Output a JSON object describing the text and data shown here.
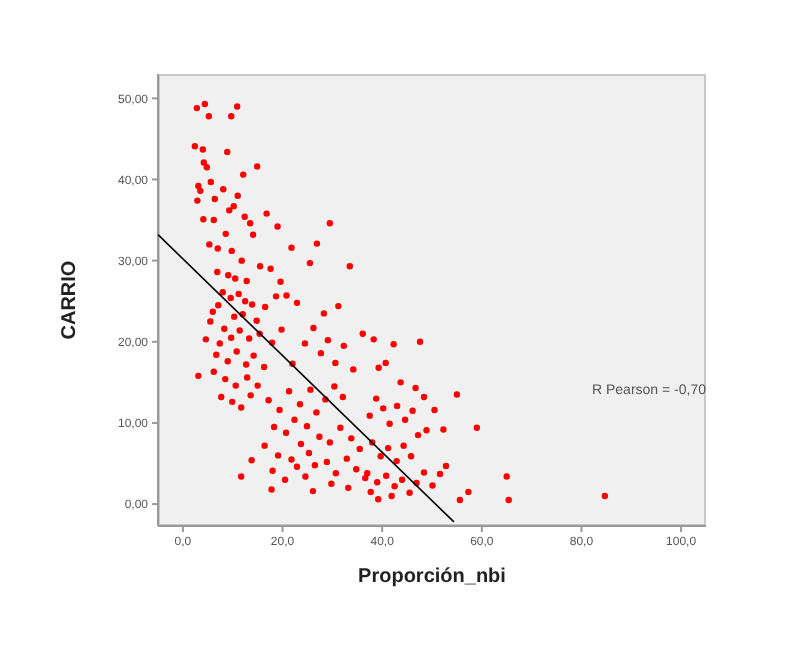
{
  "chart_data": {
    "type": "scatter",
    "xlabel": "Proporción_nbi",
    "ylabel": "CARRIO",
    "annotations": [
      "R Pearson = -0,70"
    ],
    "xlim": [
      -5,
      105
    ],
    "ylim": [
      -2.7,
      53
    ],
    "xticks": [
      {
        "value": 0,
        "label": "0,0"
      },
      {
        "value": 20,
        "label": "20,0"
      },
      {
        "value": 40,
        "label": "40,0"
      },
      {
        "value": 60,
        "label": "60,0"
      },
      {
        "value": 80,
        "label": "80,0"
      },
      {
        "value": 100,
        "label": "100,0"
      }
    ],
    "yticks": [
      {
        "value": 0,
        "label": "0,00"
      },
      {
        "value": 10,
        "label": "10,00"
      },
      {
        "value": 20,
        "label": "20,00"
      },
      {
        "value": 30,
        "label": "30,00"
      },
      {
        "value": 40,
        "label": "40,00"
      },
      {
        "value": 50,
        "label": "50,00"
      }
    ],
    "marker": "circle",
    "series": [
      {
        "color": "#ff0000",
        "x": [
          2.8,
          4.4,
          5.2,
          9.7,
          10.9,
          2.4,
          4,
          8.9,
          14.9,
          12.1,
          3.1,
          3.5,
          4.2,
          4.8,
          5.6,
          6.4,
          2.9,
          4.1,
          6.2,
          8.1,
          9.3,
          10.2,
          11,
          12.4,
          13.5,
          8.6,
          5.3,
          7,
          9.8,
          14.1,
          11.8,
          6.9,
          9.1,
          10.5,
          12.8,
          15.5,
          17.6,
          19.6,
          8,
          9.6,
          11.2,
          12.5,
          13.9,
          7.1,
          6,
          10.3,
          12,
          14.8,
          16.5,
          18.7,
          20.8,
          22.9,
          5.5,
          8.3,
          9.7,
          11.4,
          13.3,
          15.4,
          17.9,
          19.8,
          4.6,
          7.4,
          6.7,
          9,
          10.8,
          12.7,
          14.2,
          16.3,
          3.1,
          6.2,
          8.5,
          10.6,
          12.9,
          15,
          7.7,
          9.9,
          11.7,
          13.6,
          17.2,
          19.4,
          21.3,
          23.5,
          25.6,
          18.3,
          20.7,
          22.4,
          24.9,
          26.8,
          28.6,
          30.4,
          32.1,
          16.4,
          19.1,
          21.8,
          23.7,
          25.3,
          27.4,
          29.5,
          31.6,
          33.8,
          35.5,
          18,
          20.5,
          22.9,
          24.6,
          26.5,
          28.9,
          30.7,
          32.9,
          34.8,
          36.6,
          13.8,
          11.7,
          17.8,
          26.1,
          29.8,
          33.2,
          37.7,
          39.2,
          27.7,
          29.1,
          30.6,
          32.3,
          26.2,
          28.3,
          24.5,
          22,
          34.2,
          36.1,
          31.2,
          33.5,
          26.9,
          29.5,
          19,
          16.8,
          21.8,
          25.5,
          37.5,
          38.8,
          40.2,
          41.5,
          43,
          44.6,
          46.1,
          38,
          39.7,
          41.2,
          42.9,
          44.3,
          45.8,
          47.2,
          48.9,
          50.5,
          37,
          39,
          40.8,
          42.5,
          44,
          45.5,
          46.9,
          48.4,
          50.1,
          41.9,
          43.7,
          46.7,
          39.3,
          40.7,
          38.3,
          48.4,
          52.3,
          65,
          65.4,
          84.7,
          59,
          55,
          47.6,
          42.3,
          57.3,
          55.6,
          52.8,
          51.6
        ],
        "values": [
          48.8,
          49.3,
          47.8,
          47.8,
          49,
          44.1,
          43.7,
          43.4,
          41.6,
          40.6,
          39.2,
          38.6,
          42.1,
          41.5,
          39.7,
          37.6,
          37.4,
          35.1,
          35,
          38.8,
          36.2,
          36.7,
          38,
          35.4,
          34.6,
          33.3,
          32,
          31.5,
          31.2,
          33.2,
          30,
          28.6,
          28.2,
          27.8,
          27.5,
          29.3,
          29,
          27.4,
          26.1,
          25.4,
          25.9,
          25,
          24.6,
          24.5,
          23.7,
          23.1,
          23.4,
          22.6,
          24.3,
          25.6,
          25.7,
          24.8,
          22.5,
          21.6,
          20.5,
          21.4,
          20.4,
          21,
          19.9,
          21.5,
          20.3,
          19.8,
          18.4,
          17.6,
          18.8,
          17.2,
          18.3,
          16.9,
          15.8,
          16.3,
          15.4,
          14.6,
          15.6,
          14.6,
          13.2,
          12.6,
          11.9,
          13.4,
          12.8,
          11.6,
          13.9,
          12.3,
          14.1,
          9.5,
          8.8,
          10.4,
          9.6,
          11.3,
          12.9,
          14.5,
          13.2,
          7.2,
          6,
          5.5,
          7.4,
          6.3,
          8.3,
          7.6,
          9.4,
          8.1,
          6.8,
          4.1,
          3,
          4.6,
          3.4,
          4.8,
          5.2,
          3.8,
          5.6,
          4.3,
          3.2,
          5.4,
          3.4,
          1.8,
          1.6,
          2.5,
          2,
          1.5,
          0.6,
          18.6,
          20.2,
          17.4,
          19.5,
          21.7,
          23.5,
          19.8,
          17.3,
          16.6,
          21,
          24.4,
          29.3,
          32.1,
          34.6,
          34.2,
          35.8,
          31.6,
          29.7,
          10.9,
          13,
          11.8,
          9.9,
          12.1,
          10.4,
          11.5,
          7.6,
          5.9,
          6.9,
          5.3,
          7.2,
          5.9,
          8.5,
          9.1,
          11.6,
          3.8,
          2.7,
          3.5,
          2.2,
          3,
          1.4,
          2.6,
          3.9,
          2.3,
          1,
          15,
          14.3,
          16.8,
          17.4,
          20.3,
          13.2,
          9.2,
          3.4,
          0.5,
          1,
          9.4,
          13.5,
          20,
          19.7,
          1.5,
          0.5,
          4.7,
          3.7
        ]
      },
      {
        "type": "line",
        "color": "#000000",
        "marker": "none",
        "x": [
          -5,
          54.4
        ],
        "values": [
          33.2,
          -2.2
        ]
      }
    ]
  }
}
